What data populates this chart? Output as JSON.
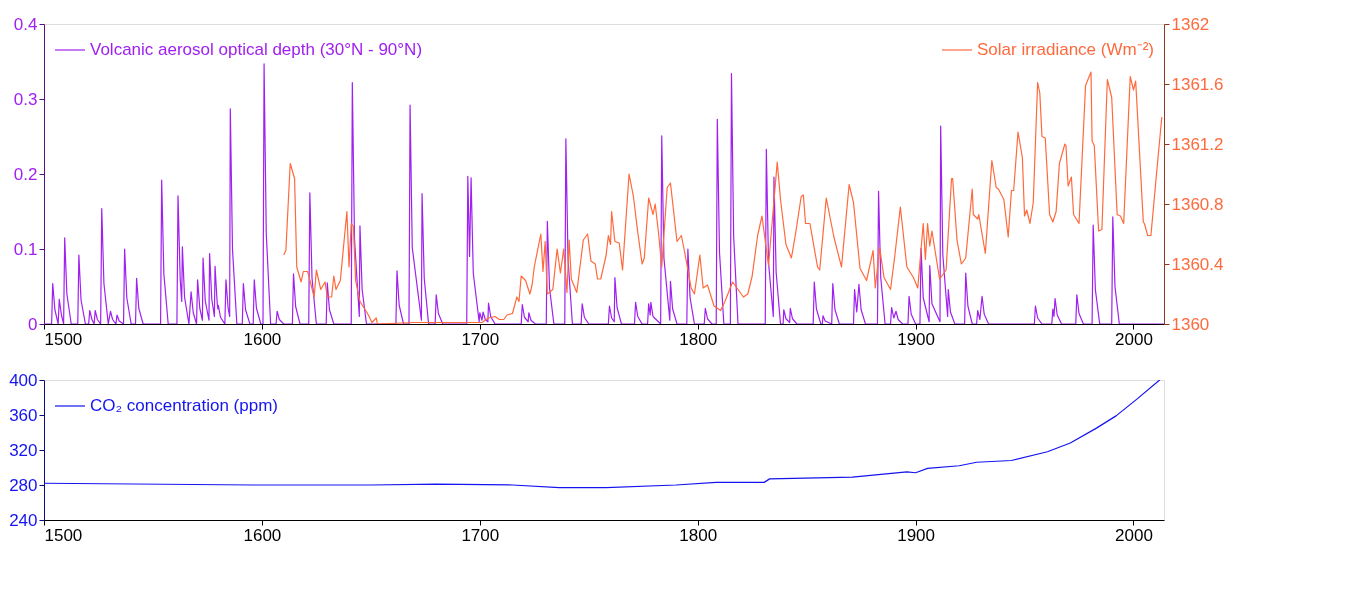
{
  "chart_data": [
    {
      "type": "line",
      "legend": "top",
      "xlim": [
        1500,
        2014
      ],
      "xticks": [
        1500,
        1600,
        1700,
        1800,
        1900,
        2000
      ],
      "ylim": [
        0,
        0.4
      ],
      "yticks": [
        0,
        0.1,
        0.2,
        0.3,
        0.4
      ],
      "y2lim": [
        1360,
        1362
      ],
      "y2ticks": [
        1360,
        1360.4,
        1360.8,
        1361.2,
        1361.6,
        1362
      ],
      "series": [
        {
          "name": "Volcanic aerosol optical depth (30°N - 90°N)",
          "color": "#a020f0",
          "axis": "y",
          "x": [
            1500,
            1503.5,
            1504,
            1505,
            1506.5,
            1507,
            1508,
            1509,
            1509.5,
            1510.5,
            1512.5,
            1515.5,
            1516,
            1517,
            1519,
            1520.5,
            1521,
            1522,
            1523,
            1523.5,
            1524.5,
            1526,
            1526.5,
            1527.5,
            1529.5,
            1530.5,
            1531.5,
            1533,
            1533.5,
            1534.5,
            1536.5,
            1537,
            1538,
            1540,
            1542,
            1542.5,
            1543.5,
            1545.5,
            1553.5,
            1554,
            1555,
            1557,
            1561,
            1561.5,
            1562.5,
            1563.2,
            1563.5,
            1564.5,
            1566.5,
            1567.5,
            1568.5,
            1570,
            1570.5,
            1571.5,
            1572.7,
            1573,
            1574,
            1575.7,
            1576,
            1577,
            1578.2,
            1578.5,
            1579.5,
            1579.8,
            1580,
            1581,
            1583,
            1583.5,
            1584.5,
            1585.2,
            1585.5,
            1586.5,
            1588.5,
            1591,
            1591.5,
            1592.5,
            1594.5,
            1596,
            1596.5,
            1597.5,
            1599.5,
            1600.5,
            1601,
            1602,
            1604,
            1606.5,
            1607,
            1608,
            1610,
            1614,
            1614.5,
            1615.5,
            1617.5,
            1621.5,
            1622,
            1623,
            1625,
            1629.5,
            1630,
            1631,
            1633,
            1641,
            1641.5,
            1642.5,
            1644.7,
            1645,
            1646,
            1648,
            1661.5,
            1662,
            1663,
            1665,
            1667.5,
            1668,
            1669,
            1673.2,
            1673.5,
            1674.5,
            1676.5,
            1679.5,
            1680,
            1681,
            1683,
            1694,
            1694.5,
            1695.3,
            1696,
            1697,
            1699.7,
            1700,
            1701,
            1701.5,
            1702.5,
            1703.7,
            1704,
            1705,
            1707,
            1719,
            1719.5,
            1720.5,
            1722.2,
            1722.5,
            1723.5,
            1725.5,
            1730.5,
            1731,
            1732,
            1734,
            1739,
            1739.5,
            1740.5,
            1742.5,
            1746.5,
            1747,
            1748,
            1750,
            1759,
            1759.5,
            1760.5,
            1761.7,
            1762,
            1763,
            1765,
            1771,
            1771.5,
            1772.5,
            1774.5,
            1777,
            1777.5,
            1778.2,
            1778.5,
            1779.5,
            1783,
            1783.5,
            1784.5,
            1787.2,
            1787.5,
            1788.5,
            1790.5,
            1795,
            1795.5,
            1796.5,
            1798.5,
            1803,
            1803.5,
            1804.5,
            1806.5,
            1808.5,
            1809,
            1810,
            1812,
            1815,
            1815.5,
            1816.5,
            1818.5,
            1831,
            1831.5,
            1832.5,
            1834.7,
            1835,
            1836,
            1838,
            1839.2,
            1839.5,
            1840.5,
            1842.2,
            1842.5,
            1843.5,
            1845.5,
            1853,
            1853.5,
            1854.5,
            1856.5,
            1857.2,
            1857.5,
            1858.5,
            1861.5,
            1862,
            1863,
            1865,
            1871.5,
            1872,
            1873,
            1874,
            1875,
            1877,
            1882.5,
            1883,
            1884,
            1886,
            1888.5,
            1889,
            1890,
            1891,
            1892,
            1894,
            1896.5,
            1897,
            1898,
            1900,
            1902,
            1902.5,
            1903.5,
            1906.2,
            1906.5,
            1907.5,
            1911.2,
            1911.5,
            1912.5,
            1914.7,
            1915,
            1916,
            1918,
            1922.5,
            1923,
            1924,
            1926,
            1928,
            1928.5,
            1929.5,
            1930.5,
            1931.5,
            1933.5,
            1954.5,
            1955,
            1956,
            1958,
            1962.5,
            1963,
            1963.5,
            1964,
            1965,
            1967,
            1973.5,
            1974,
            1975,
            1977,
            1981,
            1981.5,
            1982.5,
            1984.5,
            1990,
            1990.5,
            1991.5,
            1993.5,
            2014
          ],
          "values": [
            0,
            0,
            0.054,
            0.019,
            0,
            0.033,
            0.012,
            0,
            0.115,
            0.04,
            0,
            0,
            0.092,
            0.032,
            0,
            0,
            0.018,
            0.006,
            0,
            0.018,
            0.006,
            0,
            0.154,
            0.054,
            0,
            0.017,
            0.006,
            0,
            0.012,
            0.004,
            0,
            0.1,
            0.035,
            0,
            0,
            0.061,
            0.021,
            0,
            0,
            0.192,
            0.067,
            0,
            0,
            0.171,
            0.06,
            0.03,
            0.103,
            0.036,
            0,
            0.043,
            0.015,
            0,
            0.059,
            0.021,
            0.005,
            0.088,
            0.031,
            0.005,
            0.094,
            0.033,
            0.01,
            0.077,
            0.027,
            0.02,
            0.025,
            0.009,
            0,
            0.059,
            0.021,
            0.01,
            0.287,
            0.1,
            0,
            0,
            0.054,
            0.019,
            0,
            0,
            0.059,
            0.021,
            0,
            0,
            0.347,
            0.121,
            0,
            0,
            0.017,
            0.006,
            0,
            0,
            0.067,
            0.023,
            0,
            0,
            0.175,
            0.061,
            0,
            0,
            0.055,
            0.019,
            0,
            0,
            0.322,
            0.113,
            0.01,
            0.131,
            0.046,
            0,
            0,
            0.071,
            0.025,
            0,
            0,
            0.292,
            0.102,
            0.005,
            0.174,
            0.061,
            0,
            0,
            0.039,
            0.014,
            0,
            0,
            0.197,
            0.09,
            0.195,
            0.068,
            0.003,
            0.015,
            0.005,
            0.016,
            0.006,
            0.003,
            0.028,
            0.01,
            0,
            0,
            0.026,
            0.009,
            0.003,
            0.015,
            0.005,
            0,
            0,
            0.137,
            0.048,
            0,
            0,
            0.247,
            0.086,
            0,
            0,
            0.027,
            0.009,
            0,
            0,
            0.024,
            0.008,
            0.003,
            0.062,
            0.022,
            0,
            0,
            0.029,
            0.01,
            0,
            0,
            0.027,
            0.012,
            0.029,
            0.01,
            0,
            0.251,
            0.088,
            0.005,
            0.057,
            0.02,
            0,
            0,
            0.1,
            0.035,
            0,
            0,
            0.021,
            0.007,
            0,
            0,
            0.273,
            0.096,
            0,
            0,
            0.334,
            0.117,
            0,
            0,
            0.233,
            0.082,
            0.01,
            0.196,
            0.069,
            0,
            0,
            0.019,
            0.007,
            0.002,
            0.021,
            0.007,
            0,
            0,
            0.056,
            0.02,
            0,
            0,
            0.011,
            0.004,
            0,
            0.054,
            0.019,
            0,
            0,
            0.046,
            0.016,
            0.053,
            0.019,
            0,
            0,
            0.177,
            0.062,
            0,
            0,
            0.022,
            0.008,
            0.017,
            0.006,
            0,
            0,
            0.037,
            0.013,
            0,
            0,
            0.101,
            0.035,
            0.003,
            0.078,
            0.027,
            0.003,
            0.264,
            0.092,
            0.01,
            0.046,
            0.016,
            0,
            0,
            0.068,
            0.024,
            0,
            0,
            0.018,
            0.006,
            0.037,
            0.013,
            0,
            0,
            0.024,
            0.008,
            0,
            0,
            0.02,
            0.01,
            0.034,
            0.012,
            0,
            0,
            0.039,
            0.014,
            0,
            0,
            0.132,
            0.046,
            0,
            0,
            0.143,
            0.05,
            0,
            0
          ]
        },
        {
          "name": "Solar irradiance (Wm⁻²)",
          "color": "#ff6a3d",
          "axis": "y2",
          "x": [
            1610,
            1611,
            1613,
            1615,
            1616,
            1618,
            1619,
            1621,
            1624,
            1625,
            1627,
            1629,
            1630,
            1632,
            1633,
            1634,
            1636,
            1639,
            1640,
            1641,
            1642,
            1643,
            1645,
            1648.5,
            1650.5,
            1652.5,
            1653,
            1670,
            1690,
            1701,
            1704,
            1707,
            1709,
            1711,
            1712.5,
            1715,
            1717,
            1718,
            1719,
            1721,
            1723,
            1724,
            1725,
            1728,
            1729,
            1730,
            1731,
            1733.5,
            1735.5,
            1737,
            1738.5,
            1740,
            1741,
            1742,
            1744.5,
            1747.5,
            1749.5,
            1751,
            1753,
            1754,
            1755.5,
            1758,
            1759,
            1760,
            1760.5,
            1762,
            1764,
            1765.5,
            1768.5,
            1770.5,
            1772.5,
            1774.5,
            1775.5,
            1777.5,
            1779.5,
            1780.5,
            1782,
            1783.5,
            1786,
            1787.5,
            1790.5,
            1792.5,
            1794,
            1797,
            1798.5,
            1801,
            1802.5,
            1804.5,
            1807.5,
            1810.5,
            1812.5,
            1816,
            1818,
            1821,
            1823,
            1825,
            1827.5,
            1829.5,
            1832.5,
            1836.5,
            1838,
            1840.5,
            1843,
            1845,
            1847.5,
            1848.5,
            1849.5,
            1851.5,
            1855,
            1856,
            1859,
            1862.5,
            1866,
            1869.5,
            1871.5,
            1874.5,
            1877.5,
            1880.5,
            1881.5,
            1883.5,
            1885.5,
            1888.5,
            1890.5,
            1893,
            1896,
            1899,
            1901,
            1903.5,
            1904.5,
            1905.5,
            1906.5,
            1907.5,
            1911,
            1914,
            1916.5,
            1917,
            1919,
            1921,
            1923,
            1926,
            1926.5,
            1928.5,
            1929,
            1932,
            1935,
            1937,
            1938,
            1940.5,
            1942.5,
            1944,
            1945,
            1947,
            1949,
            1950,
            1951,
            1952.5,
            1954,
            1956,
            1957,
            1958,
            1959.5,
            1961.5,
            1963,
            1964.5,
            1966,
            1968.5,
            1969,
            1970,
            1971.5,
            1972.5,
            1975,
            1978,
            1980.5,
            1981,
            1982,
            1984,
            1985.5,
            1988,
            1989.5,
            1990,
            1992.5,
            1994,
            1995.5,
            1998.5,
            2000,
            2001,
            2004.5,
            2005,
            2006.5,
            2008,
            2011,
            2013
          ],
          "values": [
            1360.46,
            1360.49,
            1361.07,
            1360.97,
            1360.38,
            1360.28,
            1360.35,
            1360.35,
            1360.18,
            1360.36,
            1360.23,
            1360.28,
            1360.18,
            1360.18,
            1360.32,
            1360.23,
            1360.29,
            1360.75,
            1360.38,
            1360.67,
            1360.65,
            1360.29,
            1360.15,
            1360.07,
            1360.01,
            1360.04,
            1360.0,
            1360.01,
            1360.01,
            1360.01,
            1360.04,
            1360.05,
            1360.03,
            1360.03,
            1360.06,
            1360.07,
            1360.18,
            1360.15,
            1360.32,
            1360.29,
            1360.2,
            1360.26,
            1360.38,
            1360.6,
            1360.35,
            1360.55,
            1360.2,
            1360.23,
            1360.5,
            1360.34,
            1360.5,
            1360.21,
            1360.56,
            1360.3,
            1360.21,
            1360.56,
            1360.6,
            1360.42,
            1360.4,
            1360.3,
            1360.3,
            1360.46,
            1360.59,
            1360.53,
            1360.75,
            1360.55,
            1360.54,
            1360.36,
            1361.0,
            1360.85,
            1360.61,
            1360.4,
            1360.44,
            1360.84,
            1360.73,
            1360.8,
            1360.61,
            1360.38,
            1360.91,
            1360.94,
            1360.55,
            1360.59,
            1360.48,
            1360.24,
            1360.2,
            1360.46,
            1360.24,
            1360.26,
            1360.12,
            1360.09,
            1360.15,
            1360.28,
            1360.24,
            1360.18,
            1360.2,
            1360.32,
            1360.59,
            1360.72,
            1360.39,
            1361.08,
            1360.83,
            1360.53,
            1360.44,
            1360.61,
            1360.85,
            1360.86,
            1360.67,
            1360.67,
            1360.38,
            1360.36,
            1360.84,
            1360.58,
            1360.38,
            1360.93,
            1360.81,
            1360.37,
            1360.29,
            1360.49,
            1360.24,
            1360.51,
            1360.31,
            1360.23,
            1360.46,
            1360.78,
            1360.38,
            1360.31,
            1360.24,
            1360.67,
            1360.43,
            1360.67,
            1360.52,
            1360.62,
            1360.3,
            1360.36,
            1360.97,
            1360.97,
            1360.56,
            1360.4,
            1360.44,
            1360.9,
            1360.73,
            1360.7,
            1360.73,
            1360.47,
            1361.09,
            1360.91,
            1360.9,
            1360.83,
            1360.58,
            1360.89,
            1360.89,
            1361.28,
            1361.11,
            1360.72,
            1360.76,
            1360.67,
            1360.81,
            1361.61,
            1361.54,
            1361.25,
            1361.24,
            1360.73,
            1360.68,
            1360.75,
            1361.07,
            1361.2,
            1361.19,
            1360.92,
            1360.98,
            1360.73,
            1360.67,
            1361.59,
            1361.68,
            1361.22,
            1361.19,
            1360.62,
            1360.63,
            1361.63,
            1361.54,
            1361.51,
            1360.73,
            1360.72,
            1360.67,
            1361.65,
            1361.56,
            1361.62,
            1360.68,
            1360.67,
            1360.59,
            1360.59,
            1361.07,
            1361.38
          ]
        }
      ]
    },
    {
      "type": "line",
      "legend": "top left",
      "xlim": [
        1500,
        2014
      ],
      "xticks": [
        1500,
        1600,
        1700,
        1800,
        1900,
        2000
      ],
      "ylim": [
        240,
        400
      ],
      "yticks": [
        240,
        280,
        320,
        360,
        400
      ],
      "series": [
        {
          "name": "CO₂ concentration (ppm)",
          "color": "#1414f0",
          "axis": "y",
          "x": [
            1500,
            1596,
            1650,
            1680,
            1715,
            1736.5,
            1758,
            1790,
            1808.5,
            1830.5,
            1833,
            1871,
            1896,
            1900,
            1905.5,
            1920,
            1928,
            1944,
            1960.5,
            1971,
            1983,
            1992,
            2001,
            2012
          ],
          "values": [
            282,
            280,
            280,
            281,
            280,
            277,
            277,
            280,
            283,
            283,
            287,
            289,
            295,
            294,
            299,
            302,
            306,
            308,
            318,
            328,
            345,
            359,
            377,
            400
          ]
        }
      ]
    }
  ]
}
